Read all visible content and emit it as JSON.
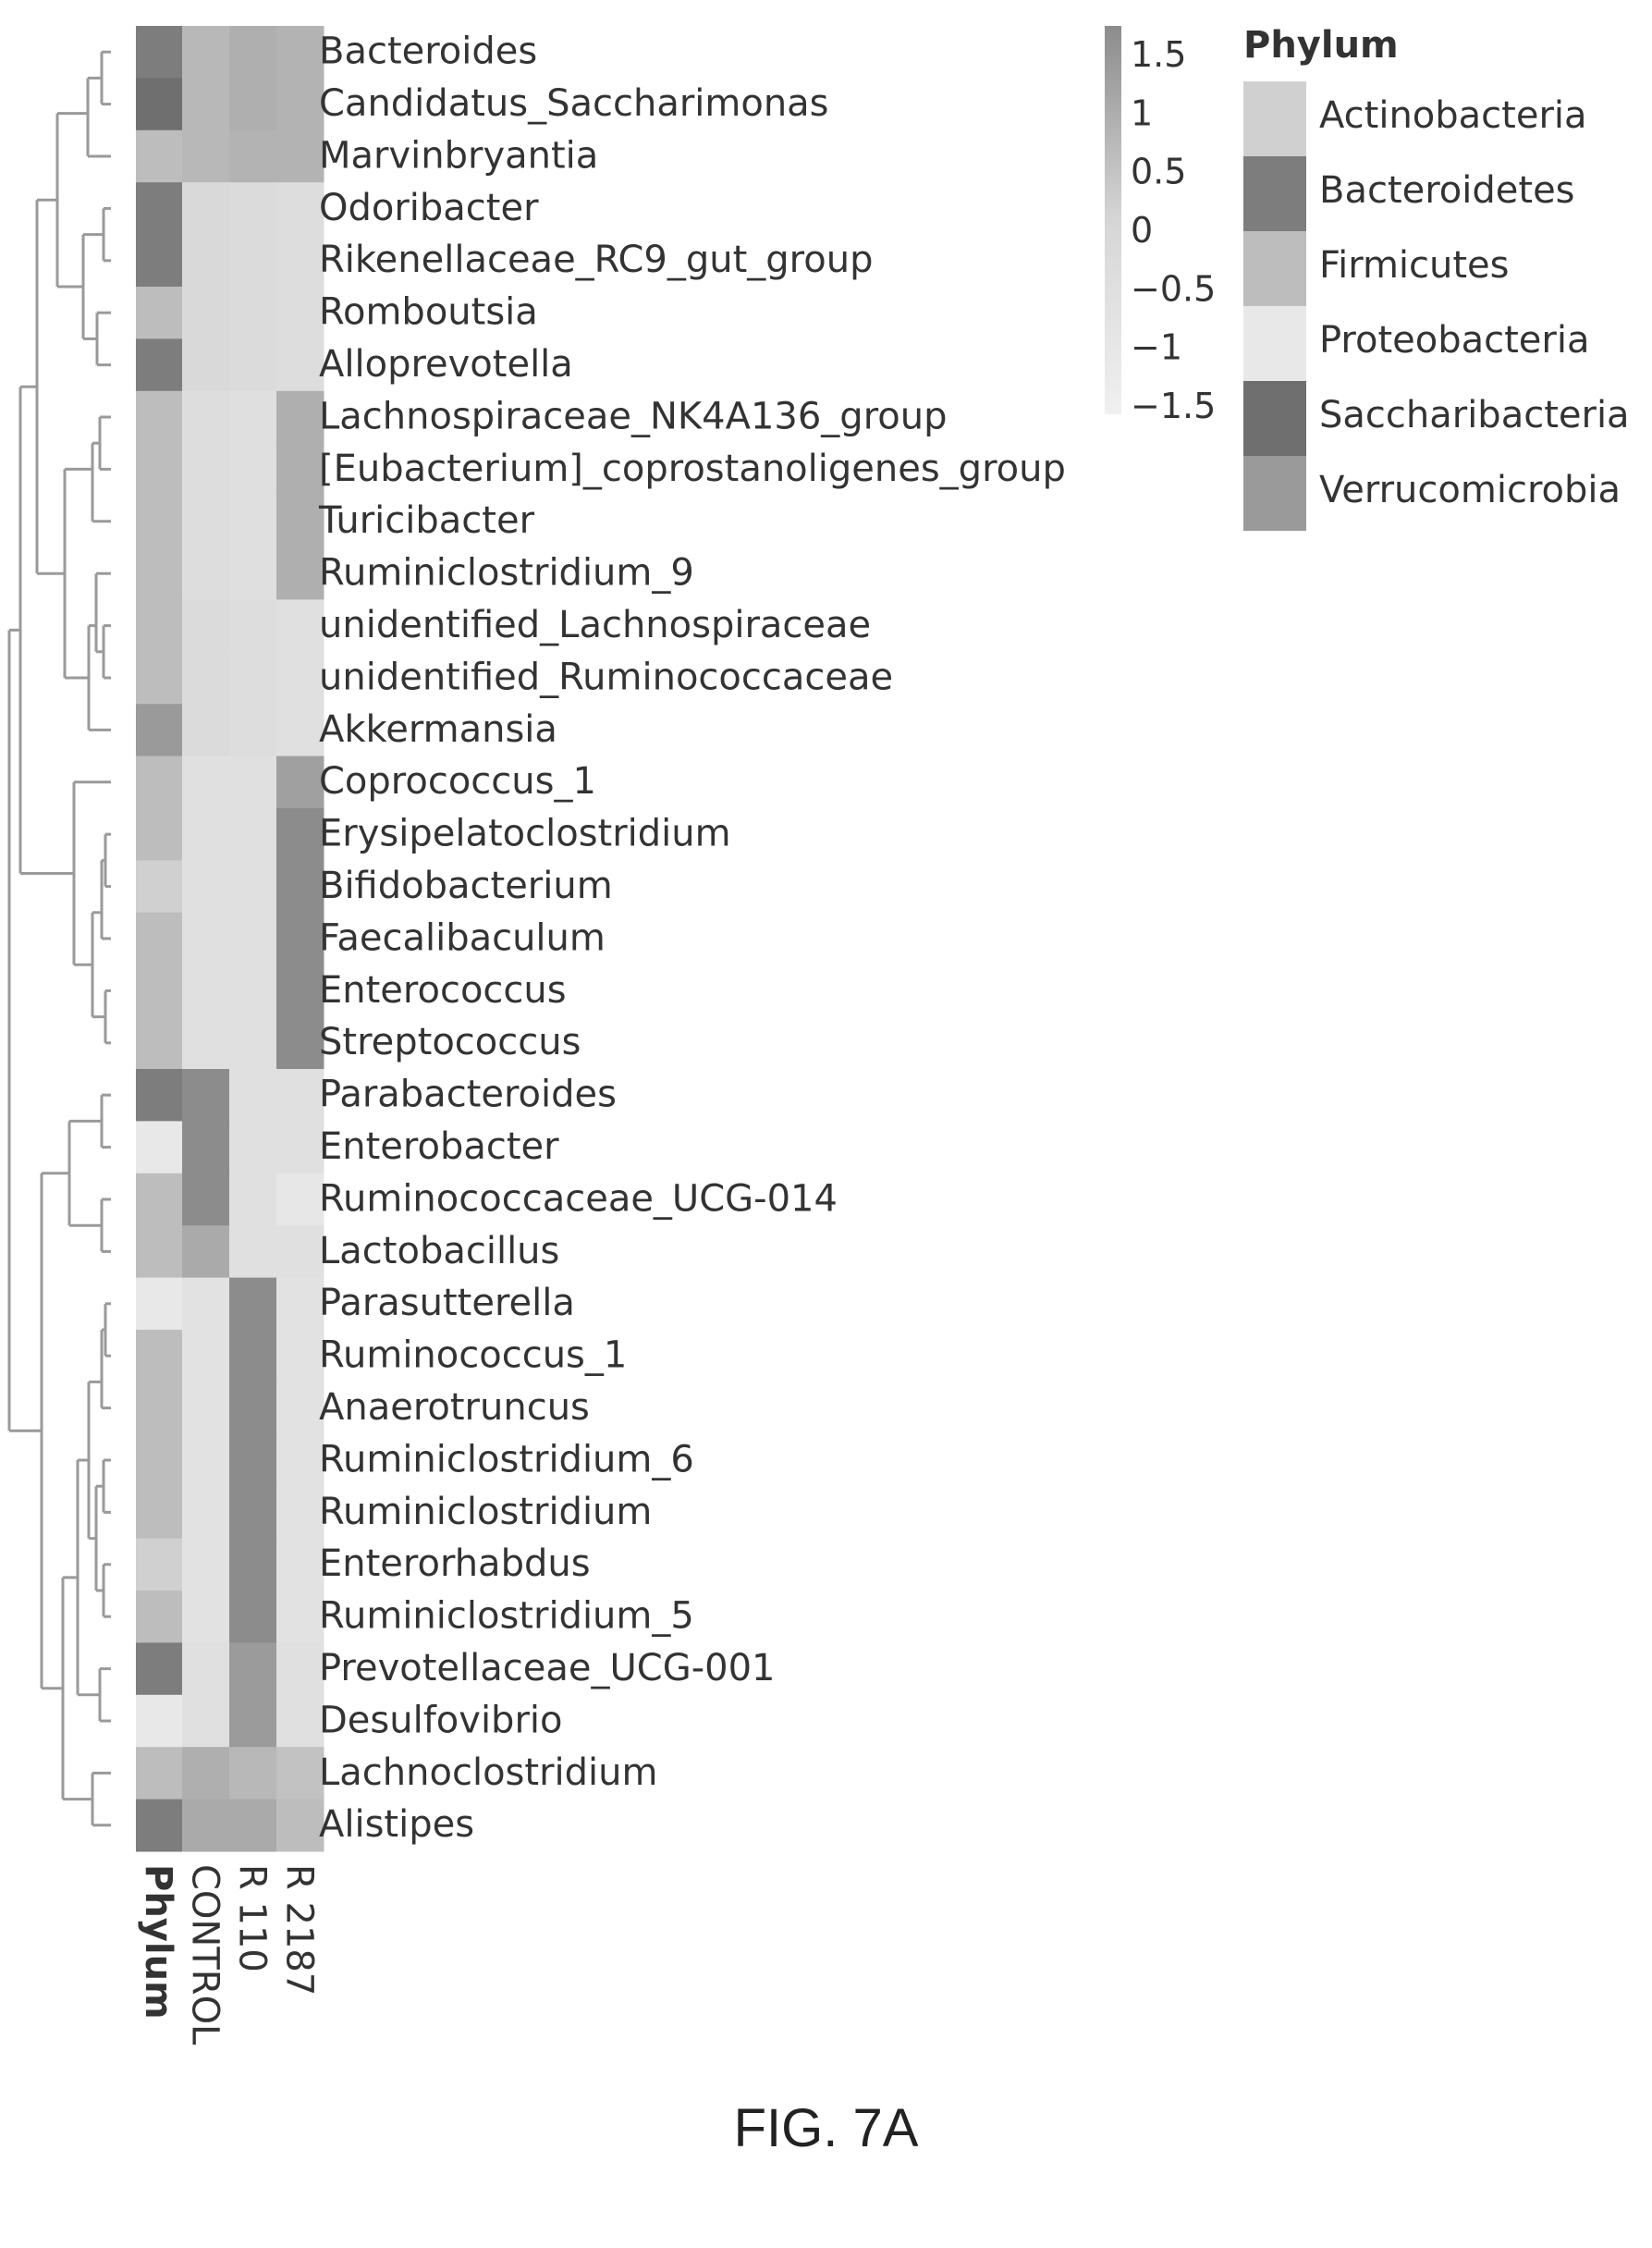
{
  "figure_label": "FIG. 7A",
  "chart_data": {
    "type": "heatmap",
    "row_labels": [
      "Bacteroides",
      "Candidatus_Saccharimonas",
      "Marvinbryantia",
      "Odoribacter",
      "Rikenellaceae_RC9_gut_group",
      "Romboutsia",
      "Alloprevotella",
      "Lachnospiraceae_NK4A136_group",
      "[Eubacterium]_coprostanoligenes_group",
      "Turicibacter",
      "Ruminiclostridium_9",
      "unidentified_Lachnospiraceae",
      "unidentified_Ruminococcaceae",
      "Akkermansia",
      "Coprococcus_1",
      "Erysipelatoclostridium",
      "Bifidobacterium",
      "Faecalibaculum",
      "Enterococcus",
      "Streptococcus",
      "Parabacteroides",
      "Enterobacter",
      "Ruminococcaceae_UCG-014",
      "Lactobacillus",
      "Parasutterella",
      "Ruminococcus_1",
      "Anaerotruncus",
      "Ruminiclostridium_6",
      "Ruminiclostridium",
      "Enterorhabdus",
      "Ruminiclostridium_5",
      "Prevotellaceae_UCG-001",
      "Desulfovibrio",
      "Lachnoclostridium",
      "Alistipes"
    ],
    "column_labels": [
      "CONTROL",
      "R 110",
      "R 2187"
    ],
    "annotation_label": "Phylum",
    "row_phylum": [
      "Bacteroidetes",
      "Saccharibacteria",
      "Firmicutes",
      "Bacteroidetes",
      "Bacteroidetes",
      "Firmicutes",
      "Bacteroidetes",
      "Firmicutes",
      "Firmicutes",
      "Firmicutes",
      "Firmicutes",
      "Firmicutes",
      "Firmicutes",
      "Verrucomicrobia",
      "Firmicutes",
      "Firmicutes",
      "Actinobacteria",
      "Firmicutes",
      "Firmicutes",
      "Firmicutes",
      "Bacteroidetes",
      "Proteobacteria",
      "Firmicutes",
      "Firmicutes",
      "Proteobacteria",
      "Firmicutes",
      "Firmicutes",
      "Firmicutes",
      "Firmicutes",
      "Actinobacteria",
      "Firmicutes",
      "Bacteroidetes",
      "Proteobacteria",
      "Firmicutes",
      "Bacteroidetes"
    ],
    "values": [
      [
        0.6,
        0.8,
        0.7
      ],
      [
        0.6,
        0.8,
        0.7
      ],
      [
        0.6,
        0.7,
        0.7
      ],
      [
        -0.2,
        -0.3,
        -0.4
      ],
      [
        -0.2,
        -0.3,
        -0.4
      ],
      [
        -0.2,
        -0.3,
        -0.4
      ],
      [
        -0.2,
        -0.3,
        -0.4
      ],
      [
        -0.4,
        -0.5,
        0.8
      ],
      [
        -0.4,
        -0.5,
        0.8
      ],
      [
        -0.4,
        -0.5,
        0.8
      ],
      [
        -0.4,
        -0.5,
        0.8
      ],
      [
        -0.3,
        -0.4,
        -0.6
      ],
      [
        -0.3,
        -0.4,
        -0.6
      ],
      [
        -0.3,
        -0.4,
        -0.6
      ],
      [
        -0.6,
        -0.6,
        1.1
      ],
      [
        -0.6,
        -0.6,
        1.5
      ],
      [
        -0.6,
        -0.6,
        1.5
      ],
      [
        -0.6,
        -0.6,
        1.5
      ],
      [
        -0.6,
        -0.6,
        1.5
      ],
      [
        -0.6,
        -0.6,
        1.5
      ],
      [
        1.5,
        -0.6,
        -0.6
      ],
      [
        1.5,
        -0.6,
        -0.6
      ],
      [
        1.5,
        -0.6,
        -1.0
      ],
      [
        0.9,
        -0.6,
        -0.6
      ],
      [
        -0.7,
        1.5,
        -0.7
      ],
      [
        -0.7,
        1.5,
        -0.7
      ],
      [
        -0.7,
        1.5,
        -0.7
      ],
      [
        -0.7,
        1.5,
        -0.7
      ],
      [
        -0.7,
        1.5,
        -0.7
      ],
      [
        -0.7,
        1.5,
        -0.7
      ],
      [
        -0.7,
        1.5,
        -0.7
      ],
      [
        -0.6,
        1.2,
        -0.6
      ],
      [
        -0.6,
        1.2,
        -0.6
      ],
      [
        0.8,
        0.6,
        0.4
      ],
      [
        0.9,
        0.9,
        0.5
      ]
    ],
    "color_scale": {
      "ticks": [
        "1.5",
        "1",
        "0.5",
        "0",
        "−0.5",
        "−1",
        "−1.5"
      ],
      "range": [
        -1.5,
        1.5
      ],
      "low_color": "#f0f0f0",
      "mid_color": "#d6d6d6",
      "high_color": "#8c8c8c"
    },
    "legend": {
      "title": "Phylum",
      "placement": "top-right",
      "entries": [
        {
          "name": "Actinobacteria",
          "color": "#d0d0d0"
        },
        {
          "name": "Bacteroidetes",
          "color": "#7d7d7d"
        },
        {
          "name": "Firmicutes",
          "color": "#bdbdbd"
        },
        {
          "name": "Proteobacteria",
          "color": "#e8e8e8"
        },
        {
          "name": "Saccharibacteria",
          "color": "#6f6f6f"
        },
        {
          "name": "Verrucomicrobia",
          "color": "#9a9a9a"
        }
      ]
    },
    "dendrogram": "row"
  }
}
